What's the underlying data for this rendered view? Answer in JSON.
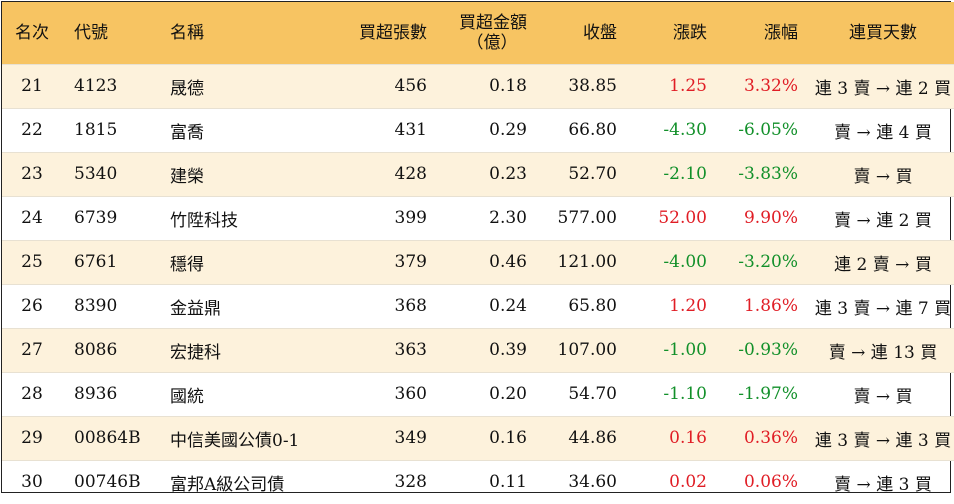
{
  "header": {
    "rank": "名次",
    "code": "代號",
    "name": "名稱",
    "volume": "買超張數",
    "amount_line1": "買超金額",
    "amount_line2": "（億）",
    "close": "收盤",
    "change": "漲跌",
    "pct": "漲幅",
    "days": "連買天數"
  },
  "colors": {
    "up": "#e01d25",
    "down": "#12902a",
    "header_bg": "#f7c462",
    "alt_row_bg": "#fdf2dc"
  },
  "rows": [
    {
      "rank": "21",
      "code": "4123",
      "name": "晟德",
      "volume": "456",
      "amount": "0.18",
      "close": "38.85",
      "change": "1.25",
      "pct": "3.32%",
      "trend": "up",
      "days": "連 3 賣 → 連 2 買"
    },
    {
      "rank": "22",
      "code": "1815",
      "name": "富喬",
      "volume": "431",
      "amount": "0.29",
      "close": "66.80",
      "change": "-4.30",
      "pct": "-6.05%",
      "trend": "down",
      "days": "賣 → 連 4 買"
    },
    {
      "rank": "23",
      "code": "5340",
      "name": "建榮",
      "volume": "428",
      "amount": "0.23",
      "close": "52.70",
      "change": "-2.10",
      "pct": "-3.83%",
      "trend": "down",
      "days": "賣 → 買"
    },
    {
      "rank": "24",
      "code": "6739",
      "name": "竹陞科技",
      "volume": "399",
      "amount": "2.30",
      "close": "577.00",
      "change": "52.00",
      "pct": "9.90%",
      "trend": "up",
      "days": "賣 → 連 2 買"
    },
    {
      "rank": "25",
      "code": "6761",
      "name": "穩得",
      "volume": "379",
      "amount": "0.46",
      "close": "121.00",
      "change": "-4.00",
      "pct": "-3.20%",
      "trend": "down",
      "days": "連 2 賣 → 買"
    },
    {
      "rank": "26",
      "code": "8390",
      "name": "金益鼎",
      "volume": "368",
      "amount": "0.24",
      "close": "65.80",
      "change": "1.20",
      "pct": "1.86%",
      "trend": "up",
      "days": "連 3 賣 → 連 7 買"
    },
    {
      "rank": "27",
      "code": "8086",
      "name": "宏捷科",
      "volume": "363",
      "amount": "0.39",
      "close": "107.00",
      "change": "-1.00",
      "pct": "-0.93%",
      "trend": "down",
      "days": "賣 → 連 13 買"
    },
    {
      "rank": "28",
      "code": "8936",
      "name": "國統",
      "volume": "360",
      "amount": "0.20",
      "close": "54.70",
      "change": "-1.10",
      "pct": "-1.97%",
      "trend": "down",
      "days": "賣 → 買"
    },
    {
      "rank": "29",
      "code": "00864B",
      "name": "中信美國公債0-1",
      "volume": "349",
      "amount": "0.16",
      "close": "44.86",
      "change": "0.16",
      "pct": "0.36%",
      "trend": "up",
      "days": "連 3 賣 → 連 3 買"
    },
    {
      "rank": "30",
      "code": "00746B",
      "name": "富邦A級公司債",
      "volume": "328",
      "amount": "0.11",
      "close": "34.60",
      "change": "0.02",
      "pct": "0.06%",
      "trend": "up",
      "days": "賣 → 連 3 買"
    }
  ]
}
